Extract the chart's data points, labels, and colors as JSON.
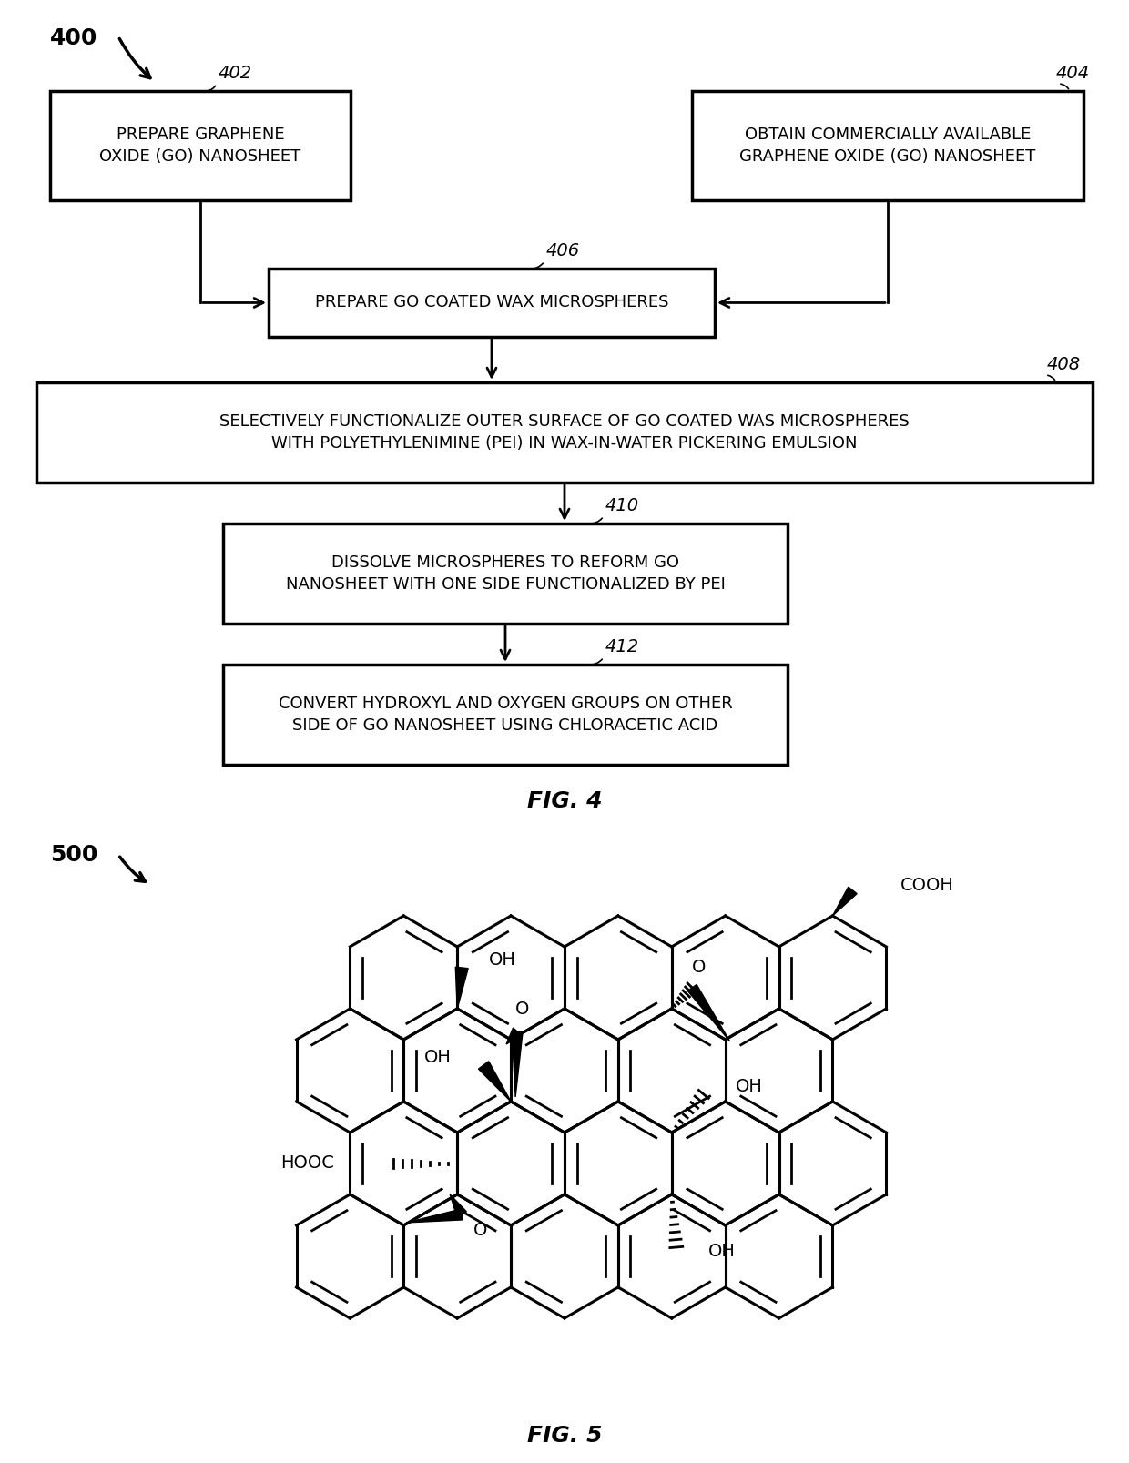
{
  "background_color": "#ffffff",
  "fig4_title": "FIG. 4",
  "fig5_title": "FIG. 5",
  "label_400": "400",
  "label_500": "500",
  "box402_text": "PREPARE GRAPHENE\nOXIDE (GO) NANOSHEET",
  "box404_text": "OBTAIN COMMERCIALLY AVAILABLE\nGRAPHENE OXIDE (GO) NANOSHEET",
  "box406_text": "PREPARE GO COATED WAX MICROSPHERES",
  "box408_text": "SELECTIVELY FUNCTIONALIZE OUTER SURFACE OF GO COATED WAS MICROSPHERES\nWITH POLYETHYLENIMINE (PEI) IN WAX-IN-WATER PICKERING EMULSION",
  "box410_text": "DISSOLVE MICROSPHERES TO REFORM GO\nNANOSHEET WITH ONE SIDE FUNCTIONALIZED BY PEI",
  "box412_text": "CONVERT HYDROXYL AND OXYGEN GROUPS ON OTHER\nSIDE OF GO NANOSHEET USING CHLORACETIC ACID",
  "ref_402": "402",
  "ref_404": "404",
  "ref_406": "406",
  "ref_408": "408",
  "ref_410": "410",
  "ref_412": "412",
  "font_size_box": 13,
  "font_size_ref": 14,
  "font_size_fig": 18,
  "font_size_label": 18
}
